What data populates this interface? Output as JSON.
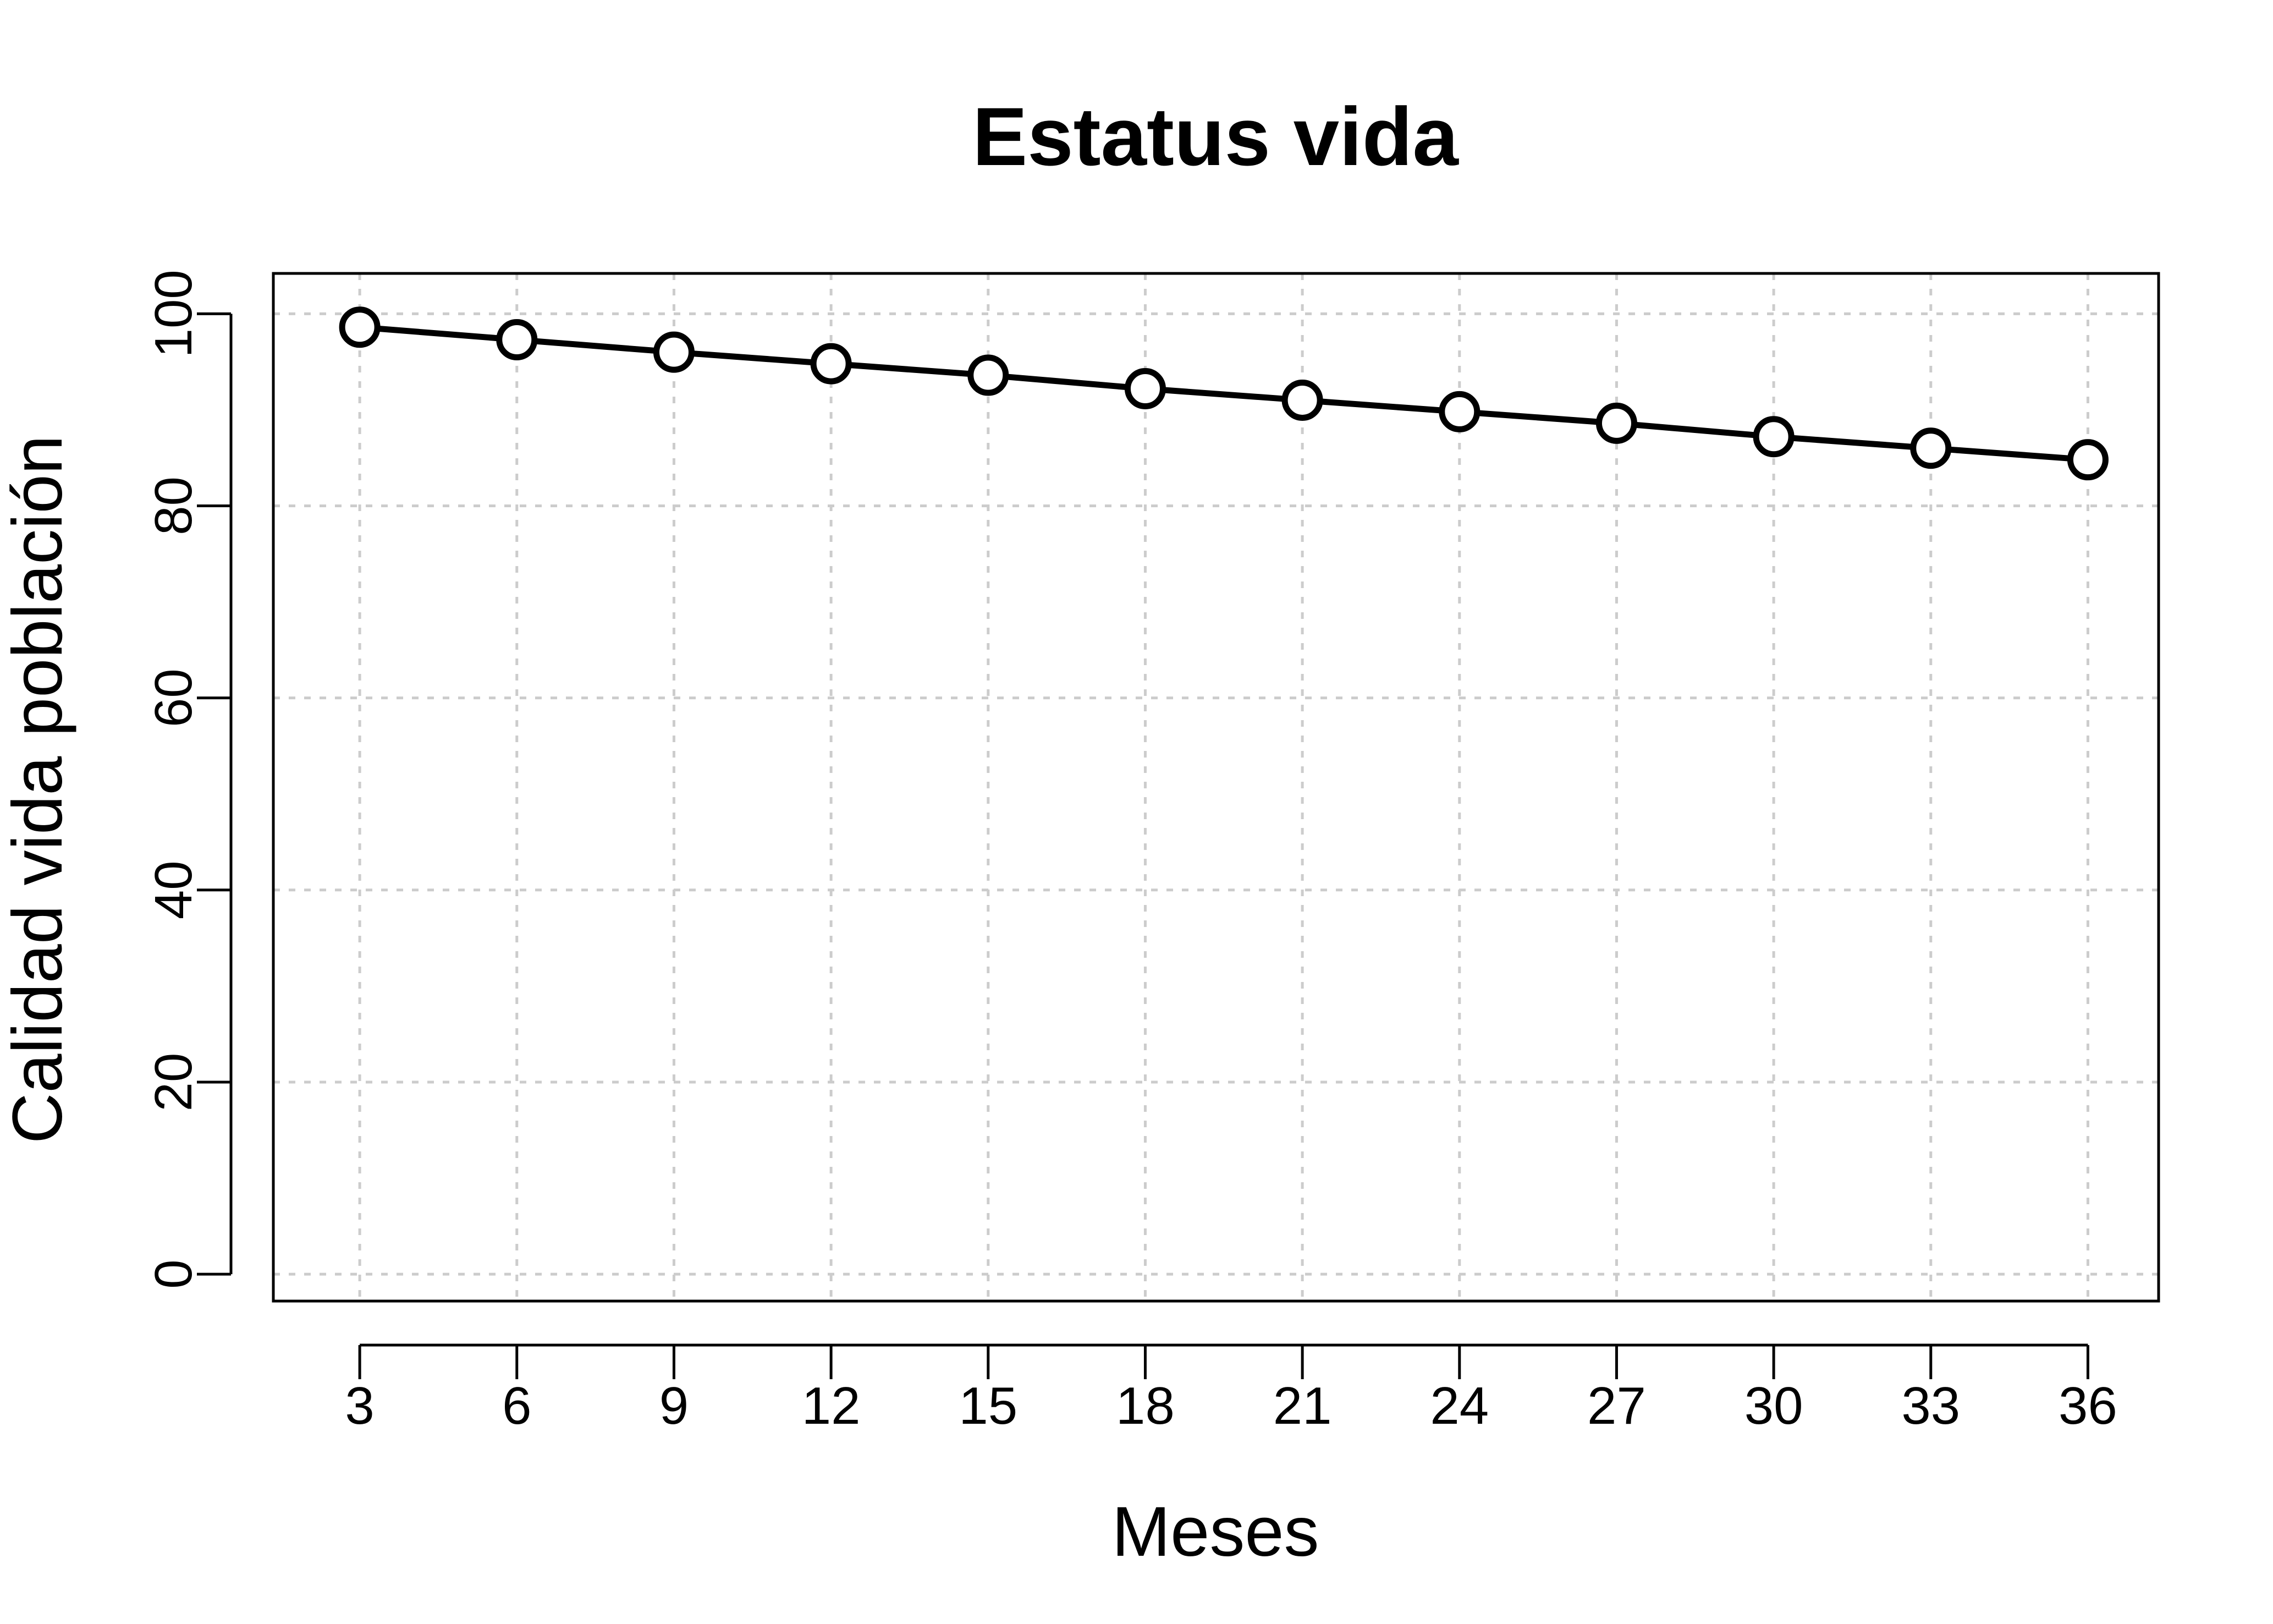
{
  "chart_data": {
    "type": "line",
    "title": "Estatus vida",
    "xlabel": "Meses",
    "ylabel": "Calidad vida población",
    "x": [
      3,
      6,
      9,
      12,
      15,
      18,
      21,
      24,
      27,
      30,
      33,
      36
    ],
    "series": [
      {
        "values": [
          98.6,
          97.3,
          96.0,
          94.8,
          93.6,
          92.2,
          91.0,
          89.8,
          88.6,
          87.2,
          86.0,
          84.8
        ]
      }
    ],
    "x_ticks": [
      "3",
      "6",
      "9",
      "12",
      "15",
      "18",
      "21",
      "24",
      "27",
      "30",
      "33",
      "36"
    ],
    "y_ticks": [
      "0",
      "20",
      "40",
      "60",
      "80",
      "100"
    ],
    "y_tick_values": [
      0,
      20,
      40,
      60,
      80,
      100
    ],
    "xlim": [
      1.35,
      37.35
    ],
    "ylim": [
      -2.8,
      104.2
    ],
    "grid": true,
    "legend": "none",
    "colors": {
      "line": "#000000",
      "grid": "#cccccc",
      "background": "#ffffff"
    }
  }
}
